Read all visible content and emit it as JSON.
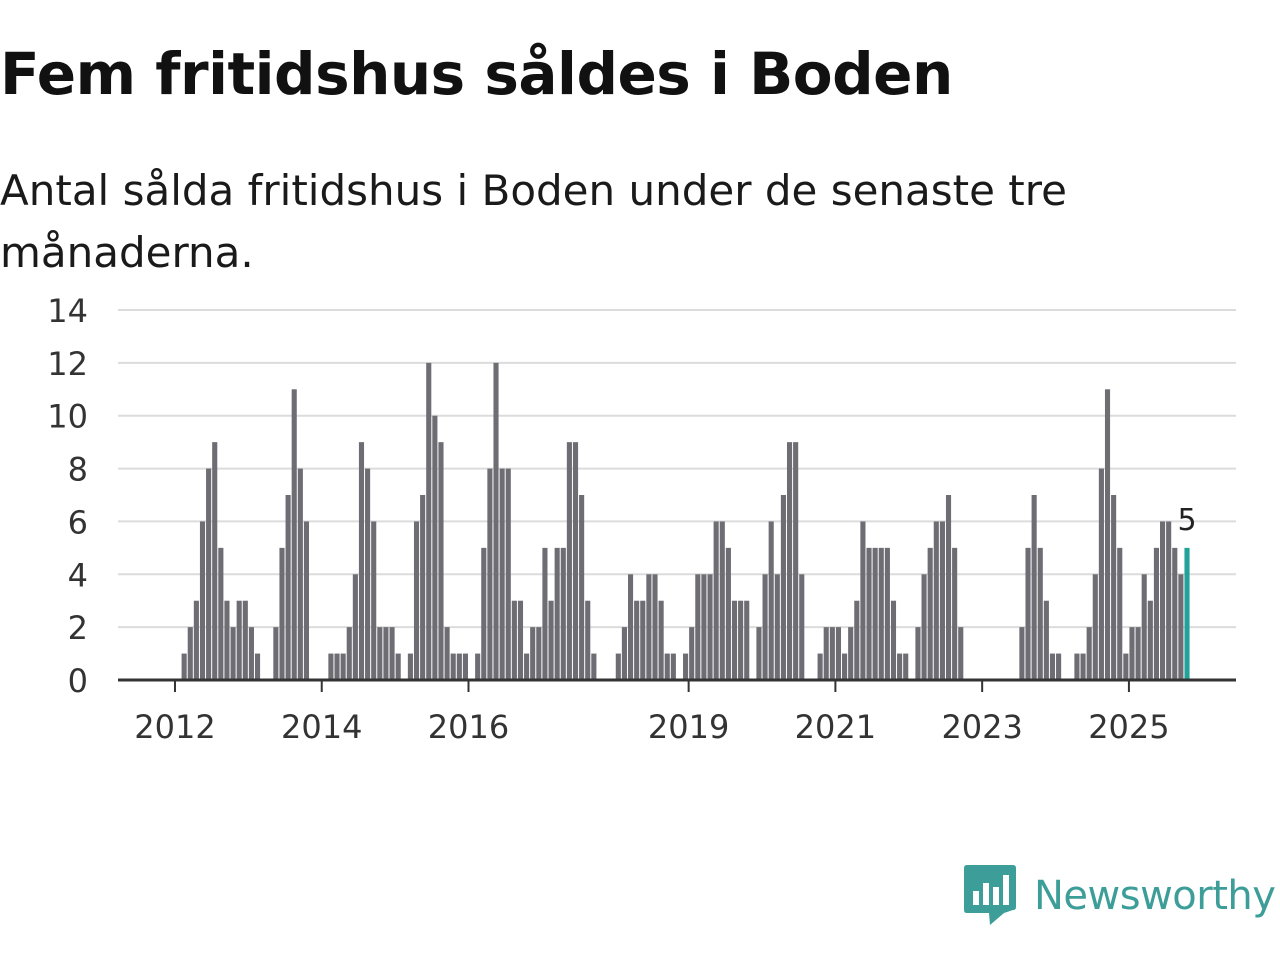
{
  "title": "Fem fritidshus såldes i Boden",
  "subtitle": "Antal sålda fritidshus i Boden under de senaste tre månaderna.",
  "brand": {
    "name": "Newsworthy",
    "logo_icon": "bar-chart-speech-bubble-icon",
    "color": "#3d9d98"
  },
  "chart_data": {
    "type": "bar",
    "title": "Fem fritidshus såldes i Boden",
    "subtitle": "Antal sålda fritidshus i Boden under de senaste tre månaderna.",
    "xlabel": "",
    "ylabel": "",
    "ylim": [
      0,
      14
    ],
    "y_ticks": [
      0,
      2,
      4,
      6,
      8,
      10,
      12,
      14
    ],
    "x_start": "2011-01",
    "frequency": "monthly",
    "x_tick_labels": [
      {
        "label": "2012",
        "index": 12
      },
      {
        "label": "2014",
        "index": 36
      },
      {
        "label": "2016",
        "index": 60
      },
      {
        "label": "2019",
        "index": 96
      },
      {
        "label": "2021",
        "index": 120
      },
      {
        "label": "2023",
        "index": 144
      },
      {
        "label": "2025",
        "index": 168
      }
    ],
    "grid": true,
    "bar_color": "#6e6d73",
    "highlight_color": "#23a29a",
    "highlight_index": 177,
    "highlight_label": "5",
    "values": [
      0,
      0,
      0,
      0,
      0,
      0,
      0,
      0,
      0,
      0,
      0,
      0,
      0,
      1,
      2,
      3,
      6,
      8,
      9,
      5,
      3,
      2,
      3,
      3,
      2,
      1,
      0,
      0,
      2,
      5,
      7,
      11,
      8,
      6,
      0,
      0,
      0,
      1,
      1,
      1,
      2,
      4,
      9,
      8,
      6,
      2,
      2,
      2,
      1,
      0,
      1,
      6,
      7,
      12,
      10,
      9,
      2,
      1,
      1,
      1,
      0,
      1,
      5,
      8,
      12,
      8,
      8,
      3,
      3,
      1,
      2,
      2,
      5,
      3,
      5,
      5,
      9,
      9,
      7,
      3,
      1,
      0,
      0,
      0,
      1,
      2,
      4,
      3,
      3,
      4,
      4,
      3,
      1,
      1,
      0,
      1,
      2,
      4,
      4,
      4,
      6,
      6,
      5,
      3,
      3,
      3,
      0,
      2,
      4,
      6,
      4,
      7,
      9,
      9,
      4,
      0,
      0,
      1,
      2,
      2,
      2,
      1,
      2,
      3,
      6,
      5,
      5,
      5,
      5,
      3,
      1,
      1,
      0,
      2,
      4,
      5,
      6,
      6,
      7,
      5,
      2,
      0,
      0,
      0,
      0,
      0,
      0,
      0,
      0,
      0,
      2,
      5,
      7,
      5,
      3,
      1,
      1,
      0,
      0,
      1,
      1,
      2,
      4,
      8,
      11,
      7,
      5,
      1,
      2,
      2,
      4,
      3,
      5,
      6,
      6,
      5,
      4,
      5
    ]
  }
}
